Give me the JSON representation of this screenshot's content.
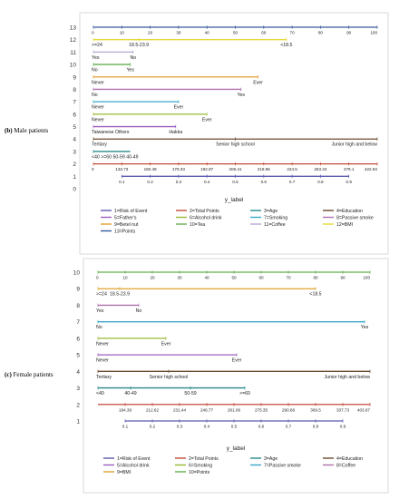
{
  "panels": [
    {
      "id": "male",
      "label_prefix": "(b)",
      "label_text": "Male patients",
      "legend_title": "y_label",
      "chart_data": {
        "type": "line",
        "row_axis": [
          0,
          1,
          2,
          3,
          4,
          5,
          6,
          7,
          8,
          9,
          10,
          11,
          12,
          13
        ],
        "rows": [
          {
            "row": 13,
            "name": "13=Points",
            "color": "#365a9a",
            "start": 0,
            "end": 100,
            "labels": [
              {
                "v": 0,
                "t": "0"
              },
              {
                "v": 10,
                "t": "10"
              },
              {
                "v": 20,
                "t": "20"
              },
              {
                "v": 30,
                "t": "30"
              },
              {
                "v": 40,
                "t": "40"
              },
              {
                "v": 50,
                "t": "50"
              },
              {
                "v": 60,
                "t": "60"
              },
              {
                "v": 70,
                "t": "70"
              },
              {
                "v": 80,
                "t": "80"
              },
              {
                "v": 90,
                "t": "90"
              },
              {
                "v": 100,
                "t": "100"
              }
            ]
          },
          {
            "row": 12,
            "name": "12=BMI",
            "color": "#e6d832",
            "start": 0,
            "end": 68,
            "labels": [
              {
                "v": 0,
                "t": ">=24"
              },
              {
                "v": 16,
                "t": "18.5-23.9"
              },
              {
                "v": 68,
                "t": "<18.5"
              }
            ]
          },
          {
            "row": 11,
            "name": "11=Coffee",
            "color": "#b5a6d6",
            "start": 0,
            "end": 14,
            "labels": [
              {
                "v": 0,
                "t": "Yes"
              },
              {
                "v": 14,
                "t": "No"
              }
            ]
          },
          {
            "row": 10,
            "name": "10=Tea",
            "color": "#63b04c",
            "start": 0,
            "end": 13,
            "labels": [
              {
                "v": 0,
                "t": "No"
              },
              {
                "v": 13,
                "t": "Yes"
              }
            ]
          },
          {
            "row": 9,
            "name": "9=Betel nut",
            "color": "#e0a030",
            "start": 0,
            "end": 58,
            "labels": [
              {
                "v": 0,
                "t": "Never"
              },
              {
                "v": 58,
                "t": "Ever"
              }
            ]
          },
          {
            "row": 8,
            "name": "8=Passive smoke",
            "color": "#b070b0",
            "start": 0,
            "end": 52,
            "labels": [
              {
                "v": 0,
                "t": "No"
              },
              {
                "v": 52,
                "t": "Yes"
              }
            ]
          },
          {
            "row": 7,
            "name": "7=Smoking",
            "color": "#3aa8c8",
            "start": 0,
            "end": 30,
            "labels": [
              {
                "v": 0,
                "t": "Never"
              },
              {
                "v": 30,
                "t": "Ever"
              }
            ]
          },
          {
            "row": 6,
            "name": "6=Alcohol drink",
            "color": "#9ab832",
            "start": 0,
            "end": 40,
            "labels": [
              {
                "v": 0,
                "t": "Never"
              },
              {
                "v": 40,
                "t": "Ever"
              }
            ]
          },
          {
            "row": 5,
            "name": "5=Father's",
            "color": "#9b5fc0",
            "start": 0,
            "end": 29,
            "labels": [
              {
                "v": 0,
                "t": "Taiwanese Others"
              },
              {
                "v": 29,
                "t": "Hakka"
              }
            ]
          },
          {
            "row": 4,
            "name": "4=Education",
            "color": "#6b4a2c",
            "start": 0,
            "end": 100,
            "labels": [
              {
                "v": 0,
                "t": "Tertiary"
              },
              {
                "v": 50,
                "t": "Senior high school"
              },
              {
                "v": 100,
                "t": "Junior high and below"
              }
            ]
          },
          {
            "row": 3,
            "name": "3=Age",
            "color": "#2a8a8a",
            "start": 0,
            "end": 13,
            "labels": [
              {
                "v": 0,
                "t": "<40 >=60 50-59 40-49"
              }
            ]
          },
          {
            "row": 2,
            "name": "2=Total Points",
            "color": "#c44a3a",
            "start": 0,
            "end": 100,
            "labels": [
              {
                "v": 0,
                "t": "0"
              },
              {
                "v": 10,
                "t": "133.73"
              },
              {
                "v": 20,
                "t": "160.49"
              },
              {
                "v": 30,
                "t": "178.33"
              },
              {
                "v": 40,
                "t": "192.87"
              },
              {
                "v": 50,
                "t": "206.41"
              },
              {
                "v": 60,
                "t": "219.96"
              },
              {
                "v": 70,
                "t": "234.5"
              },
              {
                "v": 80,
                "t": "253.34"
              },
              {
                "v": 90,
                "t": "279.1"
              },
              {
                "v": 100,
                "t": "422.94"
              }
            ]
          },
          {
            "row": 1,
            "name": "1=Risk of Event",
            "color": "#5a5ab0",
            "start": 10,
            "end": 90,
            "labels": [
              {
                "v": 10,
                "t": "0.1"
              },
              {
                "v": 20,
                "t": "0.2"
              },
              {
                "v": 30,
                "t": "0.3"
              },
              {
                "v": 40,
                "t": "0.4"
              },
              {
                "v": 50,
                "t": "0.5"
              },
              {
                "v": 60,
                "t": "0.6"
              },
              {
                "v": 70,
                "t": "0.7"
              },
              {
                "v": 80,
                "t": "0.8"
              },
              {
                "v": 90,
                "t": "0.9"
              }
            ]
          }
        ],
        "legend_order": [
          1,
          2,
          3,
          4,
          5,
          6,
          7,
          8,
          9,
          10,
          11,
          12,
          13
        ]
      }
    },
    {
      "id": "female",
      "label_prefix": "(c)",
      "label_text": "Female patients",
      "legend_title": "y_label",
      "chart_data": {
        "type": "line",
        "row_axis": [
          1,
          2,
          3,
          4,
          5,
          6,
          7,
          8,
          9,
          10
        ],
        "rows": [
          {
            "row": 10,
            "name": "10=Points",
            "color": "#63b04c",
            "start": 0,
            "end": 100,
            "labels": [
              {
                "v": 0,
                "t": "0"
              },
              {
                "v": 10,
                "t": "10"
              },
              {
                "v": 20,
                "t": "20"
              },
              {
                "v": 30,
                "t": "30"
              },
              {
                "v": 40,
                "t": "40"
              },
              {
                "v": 50,
                "t": "50"
              },
              {
                "v": 60,
                "t": "60"
              },
              {
                "v": 70,
                "t": "70"
              },
              {
                "v": 80,
                "t": "80"
              },
              {
                "v": 90,
                "t": "90"
              },
              {
                "v": 100,
                "t": "100"
              }
            ]
          },
          {
            "row": 9,
            "name": "9=BMI",
            "color": "#e0a030",
            "start": 0,
            "end": 80,
            "labels": [
              {
                "v": 0,
                "t": ">=24"
              },
              {
                "v": 8,
                "t": "18.5-23.9"
              },
              {
                "v": 80,
                "t": "<18.5"
              }
            ]
          },
          {
            "row": 8,
            "name": "8=Coffee",
            "color": "#b070b0",
            "start": 0,
            "end": 15,
            "labels": [
              {
                "v": 0,
                "t": "Yes"
              },
              {
                "v": 15,
                "t": "No"
              }
            ]
          },
          {
            "row": 7,
            "name": "7=Passive smoke",
            "color": "#3aa8c8",
            "start": 0,
            "end": 98,
            "labels": [
              {
                "v": 0,
                "t": "No"
              },
              {
                "v": 98,
                "t": "Yes"
              }
            ]
          },
          {
            "row": 6,
            "name": "6=Smoking",
            "color": "#9ab832",
            "start": 0,
            "end": 25,
            "labels": [
              {
                "v": 0,
                "t": "Never"
              },
              {
                "v": 25,
                "t": "Ever"
              }
            ]
          },
          {
            "row": 5,
            "name": "5=Alcohol drink",
            "color": "#9b5fc0",
            "start": 0,
            "end": 51,
            "labels": [
              {
                "v": 0,
                "t": "Never"
              },
              {
                "v": 51,
                "t": "Ever"
              }
            ]
          },
          {
            "row": 4,
            "name": "4=Education",
            "color": "#6b4a2c",
            "start": 0,
            "end": 100,
            "labels": [
              {
                "v": 0,
                "t": "Tertiary"
              },
              {
                "v": 26,
                "t": "Senior high school"
              },
              {
                "v": 100,
                "t": "Junior high and below"
              }
            ]
          },
          {
            "row": 3,
            "name": "3=Age",
            "color": "#2a8a8a",
            "start": 0,
            "end": 54,
            "labels": [
              {
                "v": 0,
                "t": "<40"
              },
              {
                "v": 12,
                "t": "40-49"
              },
              {
                "v": 34,
                "t": "50-59"
              },
              {
                "v": 54,
                "t": ">=60"
              }
            ]
          },
          {
            "row": 2,
            "name": "2=Total Points",
            "color": "#c44a3a",
            "start": 0,
            "end": 100,
            "labels": [
              {
                "v": 10,
                "t": "184.39"
              },
              {
                "v": 20,
                "t": "212.62"
              },
              {
                "v": 30,
                "t": "231.44"
              },
              {
                "v": 40,
                "t": "246.77"
              },
              {
                "v": 50,
                "t": "261.06"
              },
              {
                "v": 60,
                "t": "275.35"
              },
              {
                "v": 70,
                "t": "290.68"
              },
              {
                "v": 80,
                "t": "309.5"
              },
              {
                "v": 90,
                "t": "337.73"
              },
              {
                "v": 100,
                "t": "403.67"
              }
            ]
          },
          {
            "row": 1,
            "name": "1=Risk of Event",
            "color": "#5a5ab0",
            "start": 10,
            "end": 90,
            "labels": [
              {
                "v": 10,
                "t": "0.1"
              },
              {
                "v": 20,
                "t": "0.2"
              },
              {
                "v": 30,
                "t": "0.3"
              },
              {
                "v": 40,
                "t": "0.4"
              },
              {
                "v": 50,
                "t": "0.5"
              },
              {
                "v": 60,
                "t": "0.6"
              },
              {
                "v": 70,
                "t": "0.7"
              },
              {
                "v": 80,
                "t": "0.8"
              },
              {
                "v": 90,
                "t": "0.9"
              }
            ]
          }
        ],
        "legend_order": [
          1,
          2,
          3,
          4,
          5,
          6,
          7,
          8,
          9,
          10
        ]
      }
    }
  ]
}
